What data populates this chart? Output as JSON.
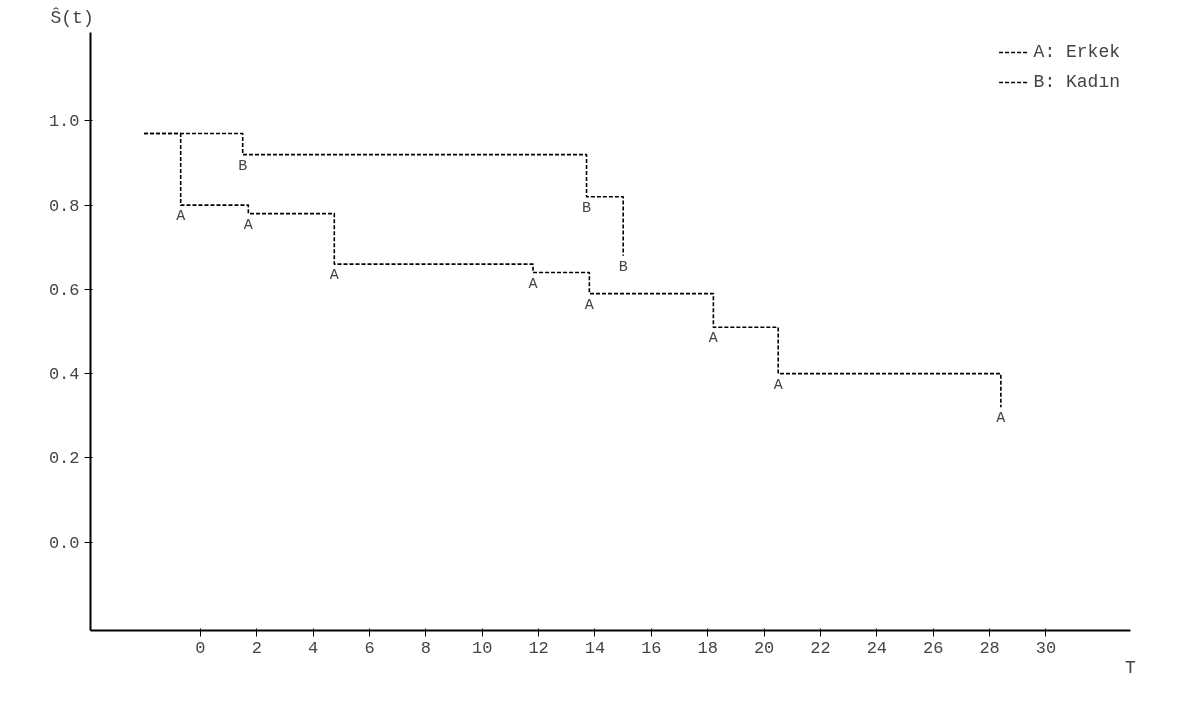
{
  "chart_data": {
    "type": "step",
    "ylabel": "Ŝ(t)",
    "xlabel": "T",
    "xlim": [
      -3.9,
      33
    ],
    "ylim": [
      -0.21,
      1.21
    ],
    "xticks": [
      0,
      2,
      4,
      6,
      8,
      10,
      12,
      14,
      16,
      18,
      20,
      22,
      24,
      26,
      28,
      30
    ],
    "yticks": [
      {
        "value": 0.0,
        "label": "0.0"
      },
      0.2,
      0.4,
      0.6,
      0.8,
      {
        "value": 1.0,
        "label": "1.0"
      }
    ],
    "grid": false,
    "legend": "top right",
    "line_style": "dashed",
    "marker": "none",
    "series": [
      {
        "name": "A: Erkek",
        "color": "#000000",
        "x": [
          -2.0,
          -0.7,
          1.7,
          4.75,
          11.8,
          13.8,
          18.2,
          20.5,
          28.4
        ],
        "values": [
          0.97,
          0.8,
          0.78,
          0.66,
          0.64,
          0.59,
          0.51,
          0.4,
          0.32
        ]
      },
      {
        "name": "B: Kadın",
        "color": "#000000",
        "x": [
          -2.0,
          1.5,
          13.7,
          15.0
        ],
        "values": [
          0.97,
          0.92,
          0.82,
          0.68
        ]
      }
    ],
    "annotations": [
      {
        "text": "A",
        "x": -0.7,
        "y": 0.8
      },
      {
        "text": "A",
        "x": 1.7,
        "y": 0.78
      },
      {
        "text": "A",
        "x": 4.75,
        "y": 0.66
      },
      {
        "text": "A",
        "x": 11.8,
        "y": 0.64
      },
      {
        "text": "A",
        "x": 13.8,
        "y": 0.59
      },
      {
        "text": "A",
        "x": 18.2,
        "y": 0.51
      },
      {
        "text": "A",
        "x": 20.5,
        "y": 0.4
      },
      {
        "text": "A",
        "x": 28.4,
        "y": 0.32
      },
      {
        "text": "B",
        "x": 1.5,
        "y": 0.92
      },
      {
        "text": "B",
        "x": 13.7,
        "y": 0.82
      },
      {
        "text": "B",
        "x": 15.0,
        "y": 0.68
      }
    ]
  }
}
